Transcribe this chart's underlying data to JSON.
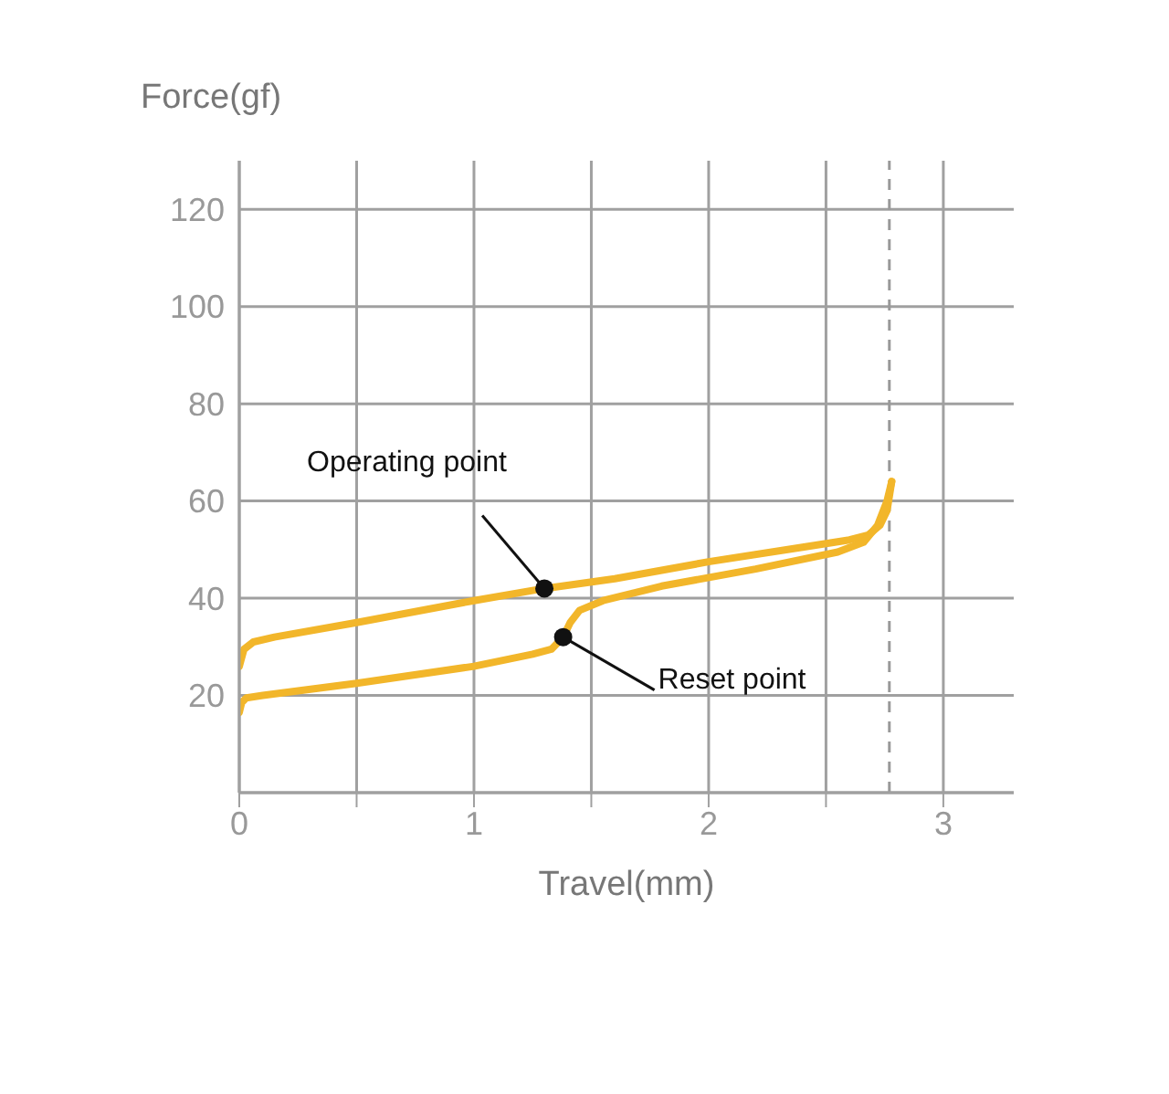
{
  "chart_data": {
    "type": "line",
    "ylabel": "Force(gf)",
    "xlabel": "Travel(mm)",
    "series": [
      {
        "color": "#f2b62a",
        "x": [
          0,
          0.02,
          0.06,
          0.15,
          0.5,
          1,
          1.3,
          1.6,
          2,
          2.4,
          2.6,
          2.68,
          2.73,
          2.76,
          2.78
        ],
        "values": [
          26,
          29.5,
          31,
          32,
          35,
          39.5,
          42,
          44,
          47.5,
          50.5,
          52,
          53,
          55,
          58,
          64
        ]
      },
      {
        "color": "#f2b62a",
        "x": [
          2.78,
          2.76,
          2.72,
          2.66,
          2.55,
          2.2,
          1.8,
          1.55,
          1.45,
          1.41,
          1.38,
          1.33,
          1.25,
          1,
          0.5,
          0.1,
          0.03,
          0.01,
          0
        ],
        "values": [
          64,
          60,
          55,
          51.5,
          49.5,
          46,
          42.5,
          39.5,
          37.5,
          35,
          32,
          29.5,
          28.5,
          26,
          22.5,
          20,
          19.5,
          18.5,
          16.5
        ]
      }
    ],
    "xlim": [
      0,
      3.3
    ],
    "xticks": [
      0,
      {
        "value": 0.5,
        "label": null
      },
      1,
      {
        "value": 1.5,
        "label": null
      },
      2,
      {
        "value": 2.5,
        "label": null
      },
      3
    ],
    "ylim": [
      0,
      130
    ],
    "yticks": [
      {
        "value": 0,
        "label": null
      },
      20,
      40,
      60,
      80,
      100,
      120
    ],
    "grid": true,
    "marker": "none",
    "line_style": "solid",
    "ref_lines": [
      {
        "axis": "x",
        "value": 2.77,
        "color": "#999999",
        "line_style": "dashed"
      }
    ],
    "annotations": [
      {
        "text": "Operating point",
        "x": 1.3,
        "y": 42
      },
      {
        "text": "Reset point",
        "x": 1.38,
        "y": 32
      }
    ]
  }
}
